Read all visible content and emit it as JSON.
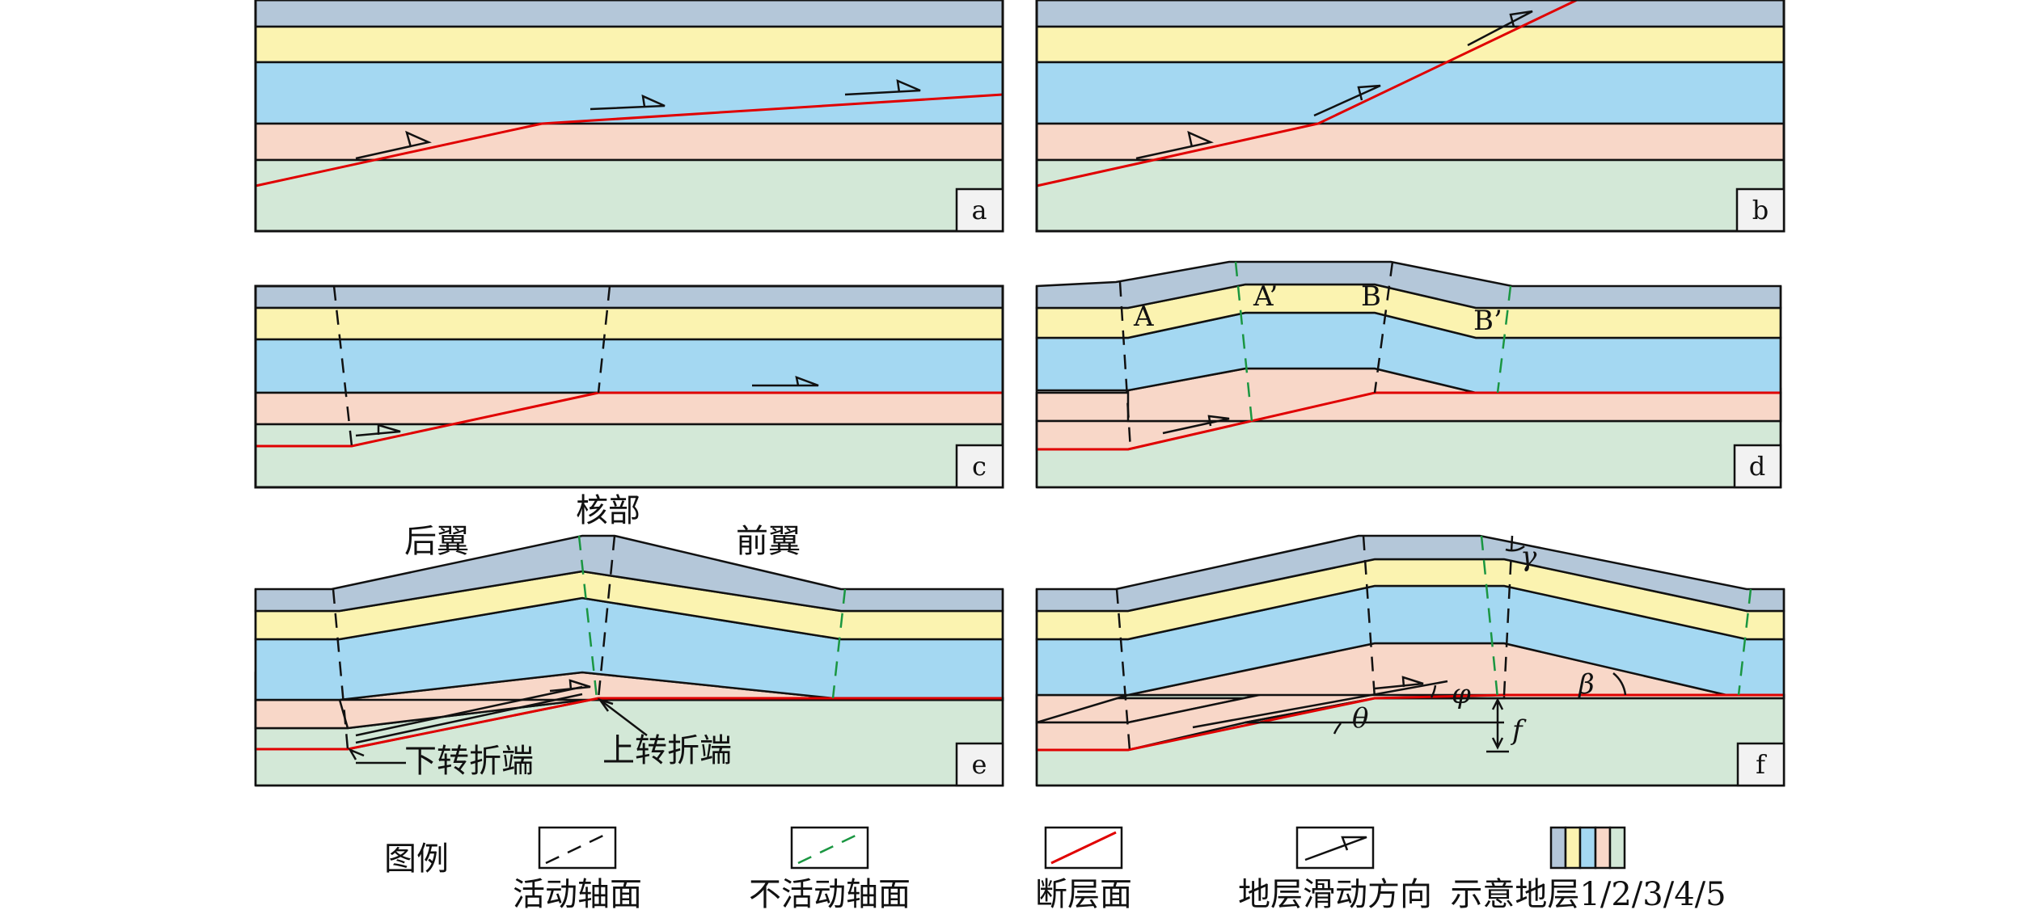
{
  "panels": {
    "a": {
      "label": "a"
    },
    "b": {
      "label": "b"
    },
    "c": {
      "label": "c"
    },
    "d": {
      "label": "d",
      "points": [
        "A",
        "A’",
        "B",
        "B’"
      ]
    },
    "e": {
      "label": "e",
      "labels": {
        "back_limb": "后翼",
        "core": "核部",
        "front_limb": "前翼",
        "lower_bend": "下转折端",
        "upper_bend": "上转折端"
      }
    },
    "f": {
      "label": "f",
      "angles": {
        "gamma": "γ",
        "phi": "φ",
        "theta": "θ",
        "beta": "β",
        "f": "f"
      }
    }
  },
  "legend": {
    "title": "图例",
    "items": [
      {
        "key": "active-axial-plane",
        "label": "活动轴面"
      },
      {
        "key": "inactive-axial-plane",
        "label": "不活动轴面"
      },
      {
        "key": "fault-plane",
        "label": "断层面"
      },
      {
        "key": "slip-direction",
        "label": "地层滑动方向"
      },
      {
        "key": "strata",
        "label": "示意地层1/2/3/4/5"
      }
    ]
  },
  "colors": {
    "layer1": "#b4c7d9",
    "layer2": "#fbf3b0",
    "layer3": "#a4d8f2",
    "layer4": "#f8d7c8",
    "layer5": "#d3e8d7",
    "fault": "#e00000",
    "active_axis": "#111111",
    "inactive_axis": "#1a9641"
  }
}
